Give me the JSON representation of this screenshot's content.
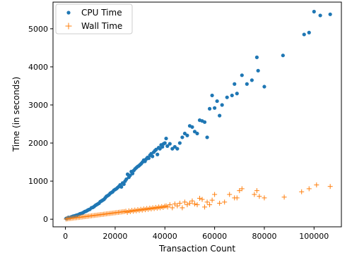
{
  "chart_data": {
    "type": "scatter",
    "title": "",
    "xlabel": "Transaction Count",
    "ylabel": "Time (in seconds)",
    "xlim": [
      -5000,
      111000
    ],
    "ylim": [
      -200,
      5700
    ],
    "xticks": [
      0,
      20000,
      40000,
      60000,
      80000,
      100000
    ],
    "yticks": [
      0,
      1000,
      2000,
      3000,
      4000,
      5000
    ],
    "legend_position": "top-left",
    "grid": false,
    "series": [
      {
        "name": "CPU Time",
        "marker": "circle",
        "color": "#1f77b4",
        "points": [
          [
            300,
            20
          ],
          [
            800,
            30
          ],
          [
            1200,
            45
          ],
          [
            1800,
            40
          ],
          [
            2300,
            60
          ],
          [
            2800,
            70
          ],
          [
            3200,
            80
          ],
          [
            3800,
            90
          ],
          [
            4300,
            100
          ],
          [
            4800,
            110
          ],
          [
            5300,
            120
          ],
          [
            5800,
            140
          ],
          [
            6300,
            150
          ],
          [
            6800,
            160
          ],
          [
            7300,
            180
          ],
          [
            7800,
            200
          ],
          [
            8300,
            210
          ],
          [
            8800,
            230
          ],
          [
            9300,
            250
          ],
          [
            9800,
            260
          ],
          [
            10500,
            300
          ],
          [
            11000,
            310
          ],
          [
            11500,
            330
          ],
          [
            12000,
            360
          ],
          [
            12500,
            380
          ],
          [
            13000,
            400
          ],
          [
            13500,
            420
          ],
          [
            14000,
            460
          ],
          [
            14500,
            480
          ],
          [
            15000,
            500
          ],
          [
            15500,
            520
          ],
          [
            16000,
            560
          ],
          [
            16500,
            600
          ],
          [
            17000,
            620
          ],
          [
            17500,
            640
          ],
          [
            18000,
            680
          ],
          [
            18500,
            700
          ],
          [
            19000,
            720
          ],
          [
            19500,
            760
          ],
          [
            20000,
            780
          ],
          [
            20500,
            800
          ],
          [
            21000,
            830
          ],
          [
            21500,
            860
          ],
          [
            22000,
            900
          ],
          [
            22500,
            850
          ],
          [
            23000,
            950
          ],
          [
            23500,
            920
          ],
          [
            24000,
            1000
          ],
          [
            24500,
            1050
          ],
          [
            25000,
            1180
          ],
          [
            25500,
            1100
          ],
          [
            26000,
            1150
          ],
          [
            26500,
            1250
          ],
          [
            27000,
            1200
          ],
          [
            27500,
            1280
          ],
          [
            28000,
            1320
          ],
          [
            28500,
            1350
          ],
          [
            29000,
            1380
          ],
          [
            29500,
            1400
          ],
          [
            30000,
            1430
          ],
          [
            30500,
            1460
          ],
          [
            31000,
            1500
          ],
          [
            31500,
            1550
          ],
          [
            32000,
            1520
          ],
          [
            32500,
            1580
          ],
          [
            33000,
            1620
          ],
          [
            33500,
            1600
          ],
          [
            34000,
            1680
          ],
          [
            34500,
            1720
          ],
          [
            35000,
            1650
          ],
          [
            35500,
            1760
          ],
          [
            36000,
            1800
          ],
          [
            36500,
            1830
          ],
          [
            37000,
            1700
          ],
          [
            37500,
            1880
          ],
          [
            38000,
            1850
          ],
          [
            38500,
            1950
          ],
          [
            39000,
            1900
          ],
          [
            39500,
            1980
          ],
          [
            40000,
            2000
          ],
          [
            40500,
            2120
          ],
          [
            41000,
            1920
          ],
          [
            42000,
            1980
          ],
          [
            43000,
            1850
          ],
          [
            44000,
            1900
          ],
          [
            45000,
            1850
          ],
          [
            46000,
            2000
          ],
          [
            47000,
            2150
          ],
          [
            48000,
            2250
          ],
          [
            49000,
            2200
          ],
          [
            50000,
            2450
          ],
          [
            51000,
            2420
          ],
          [
            52000,
            2300
          ],
          [
            53000,
            2250
          ],
          [
            54000,
            2600
          ],
          [
            55000,
            2580
          ],
          [
            56000,
            2550
          ],
          [
            57000,
            2150
          ],
          [
            58000,
            2900
          ],
          [
            59000,
            3250
          ],
          [
            60000,
            2920
          ],
          [
            61000,
            3100
          ],
          [
            62000,
            2720
          ],
          [
            63000,
            3000
          ],
          [
            65000,
            3200
          ],
          [
            67000,
            3250
          ],
          [
            68000,
            3550
          ],
          [
            69000,
            3300
          ],
          [
            71000,
            3780
          ],
          [
            73000,
            3550
          ],
          [
            75000,
            3650
          ],
          [
            77000,
            4250
          ],
          [
            77500,
            3900
          ],
          [
            80000,
            3480
          ],
          [
            87500,
            4300
          ],
          [
            96000,
            4850
          ],
          [
            98000,
            4900
          ],
          [
            100000,
            5450
          ],
          [
            102500,
            5350
          ],
          [
            106500,
            5380
          ]
        ]
      },
      {
        "name": "Wall Time",
        "marker": "plus",
        "color": "#ff7f0e",
        "points": [
          [
            300,
            5
          ],
          [
            900,
            10
          ],
          [
            1500,
            15
          ],
          [
            2100,
            20
          ],
          [
            2700,
            25
          ],
          [
            3300,
            30
          ],
          [
            3900,
            35
          ],
          [
            4500,
            40
          ],
          [
            5100,
            45
          ],
          [
            5700,
            50
          ],
          [
            6300,
            55
          ],
          [
            6900,
            60
          ],
          [
            7500,
            65
          ],
          [
            8100,
            70
          ],
          [
            8700,
            75
          ],
          [
            9300,
            80
          ],
          [
            9900,
            85
          ],
          [
            10500,
            90
          ],
          [
            11100,
            95
          ],
          [
            11700,
            100
          ],
          [
            12300,
            105
          ],
          [
            12900,
            110
          ],
          [
            13500,
            115
          ],
          [
            14100,
            120
          ],
          [
            14700,
            125
          ],
          [
            15300,
            130
          ],
          [
            15900,
            135
          ],
          [
            16500,
            140
          ],
          [
            17100,
            145
          ],
          [
            17700,
            150
          ],
          [
            18300,
            155
          ],
          [
            18900,
            160
          ],
          [
            19500,
            165
          ],
          [
            20100,
            170
          ],
          [
            20700,
            175
          ],
          [
            21300,
            180
          ],
          [
            21900,
            185
          ],
          [
            22500,
            190
          ],
          [
            23100,
            195
          ],
          [
            23700,
            200
          ],
          [
            24300,
            210
          ],
          [
            24900,
            180
          ],
          [
            25500,
            220
          ],
          [
            26100,
            200
          ],
          [
            26700,
            230
          ],
          [
            27300,
            210
          ],
          [
            27900,
            240
          ],
          [
            28500,
            220
          ],
          [
            29100,
            250
          ],
          [
            29700,
            230
          ],
          [
            30300,
            260
          ],
          [
            30900,
            240
          ],
          [
            31500,
            270
          ],
          [
            32100,
            250
          ],
          [
            32700,
            280
          ],
          [
            33300,
            260
          ],
          [
            33900,
            290
          ],
          [
            34500,
            270
          ],
          [
            35100,
            300
          ],
          [
            35700,
            280
          ],
          [
            36300,
            310
          ],
          [
            36900,
            290
          ],
          [
            37500,
            320
          ],
          [
            38100,
            300
          ],
          [
            38700,
            330
          ],
          [
            39300,
            310
          ],
          [
            39900,
            340
          ],
          [
            40500,
            350
          ],
          [
            41100,
            320
          ],
          [
            42000,
            380
          ],
          [
            43000,
            300
          ],
          [
            44000,
            400
          ],
          [
            45000,
            350
          ],
          [
            46000,
            420
          ],
          [
            47000,
            300
          ],
          [
            48000,
            450
          ],
          [
            49000,
            380
          ],
          [
            50000,
            420
          ],
          [
            51000,
            480
          ],
          [
            52000,
            400
          ],
          [
            53000,
            380
          ],
          [
            54000,
            550
          ],
          [
            55000,
            520
          ],
          [
            56000,
            320
          ],
          [
            57000,
            450
          ],
          [
            58000,
            380
          ],
          [
            59000,
            500
          ],
          [
            60000,
            650
          ],
          [
            62000,
            420
          ],
          [
            64000,
            450
          ],
          [
            66000,
            650
          ],
          [
            68000,
            560
          ],
          [
            69000,
            560
          ],
          [
            70000,
            750
          ],
          [
            71000,
            800
          ],
          [
            76000,
            650
          ],
          [
            77000,
            750
          ],
          [
            78000,
            600
          ],
          [
            80000,
            560
          ],
          [
            88000,
            580
          ],
          [
            95000,
            720
          ],
          [
            98000,
            800
          ],
          [
            101000,
            900
          ],
          [
            106500,
            860
          ]
        ]
      }
    ]
  }
}
